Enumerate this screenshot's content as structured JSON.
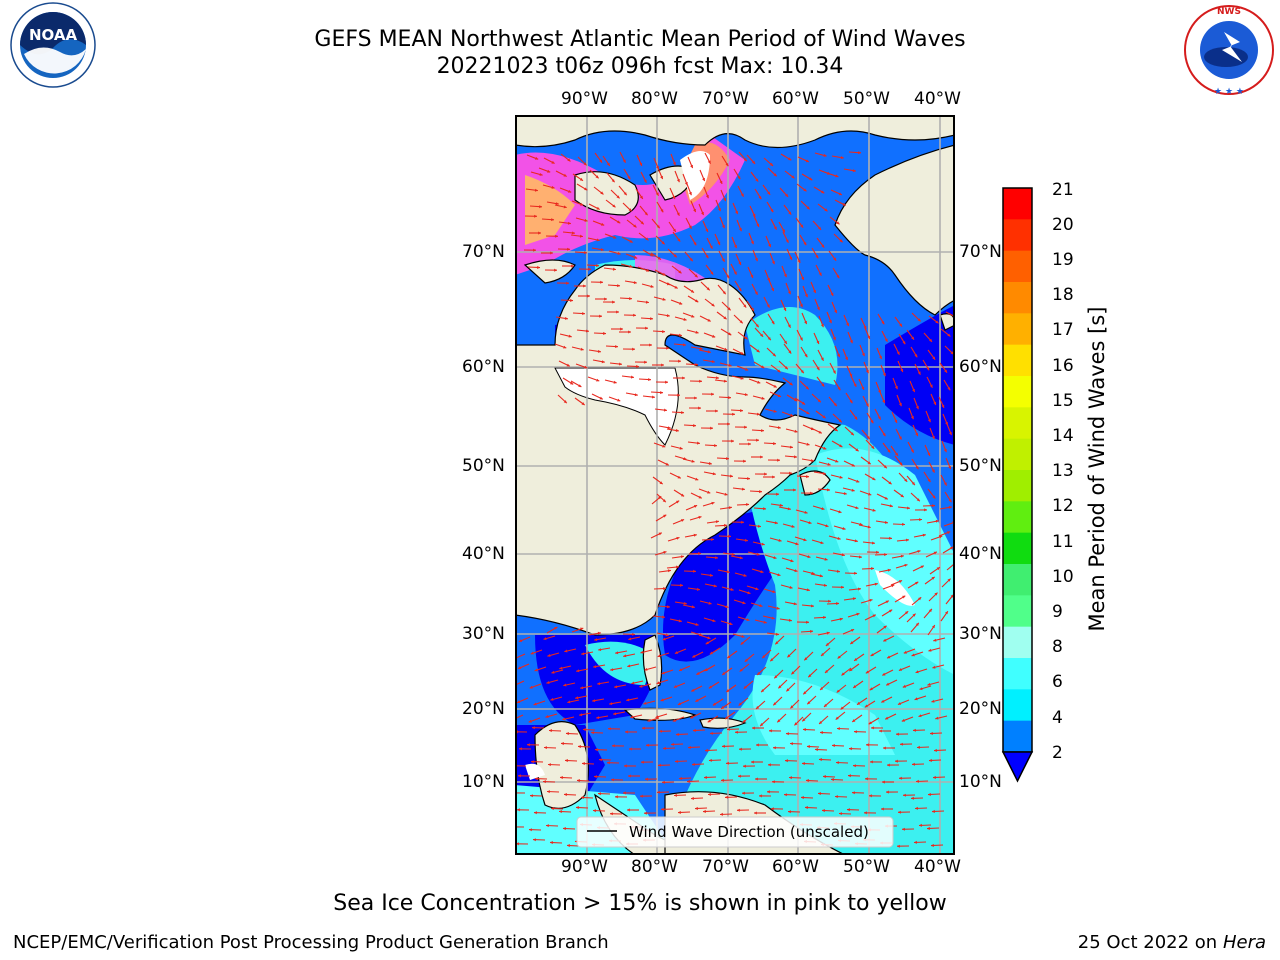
{
  "header": {
    "title_line1": "GEFS MEAN Northwest Atlantic Mean Period of Wind Waves",
    "title_line2": "20221023 t06z 096h fcst   Max: 10.34"
  },
  "logos": {
    "left": "NOAA",
    "left_ring_text": "NATIONAL OCEANIC AND ATMOSPHERIC ADMINISTRATION · U.S. DEPARTMENT OF COMMERCE",
    "right_ring_text": "NATIONAL WEATHER SERVICE"
  },
  "map": {
    "lon_labels": [
      "90°W",
      "80°W",
      "70°W",
      "60°W",
      "50°W",
      "40°W"
    ],
    "lat_labels": [
      "70°N",
      "60°N",
      "50°N",
      "40°N",
      "30°N",
      "20°N",
      "10°N"
    ],
    "legend_label": "Wind Wave Direction (unscaled)",
    "colors": {
      "land": "#efeedc",
      "grid": "#b0b0b0",
      "arrow": "#e8281e",
      "frame": "#000000"
    }
  },
  "colorbar": {
    "label": "Mean Period of Wind Waves [s]",
    "ticks": [
      "21",
      "20",
      "19",
      "18",
      "17",
      "16",
      "15",
      "14",
      "13",
      "12",
      "11",
      "10",
      "9",
      "8",
      "6",
      "4",
      "2"
    ],
    "colors": [
      "#ff0000",
      "#ff3000",
      "#ff6000",
      "#ff8a00",
      "#ffb000",
      "#ffe000",
      "#f4ff00",
      "#d8f400",
      "#c0f000",
      "#a0ee00",
      "#60ee10",
      "#10dc10",
      "#40ee70",
      "#50ff8a",
      "#a0fff0",
      "#40ffff",
      "#00f0ff",
      "#0080ff"
    ],
    "under_color": "#0000ff"
  },
  "notes": {
    "sea_ice": "Sea Ice Concentration > 15% is shown in pink to yellow",
    "footer_left": "NCEP/EMC/Verification Post Processing Product Generation Branch",
    "footer_date": "25 Oct 2022 on ",
    "footer_host": "Hera"
  }
}
